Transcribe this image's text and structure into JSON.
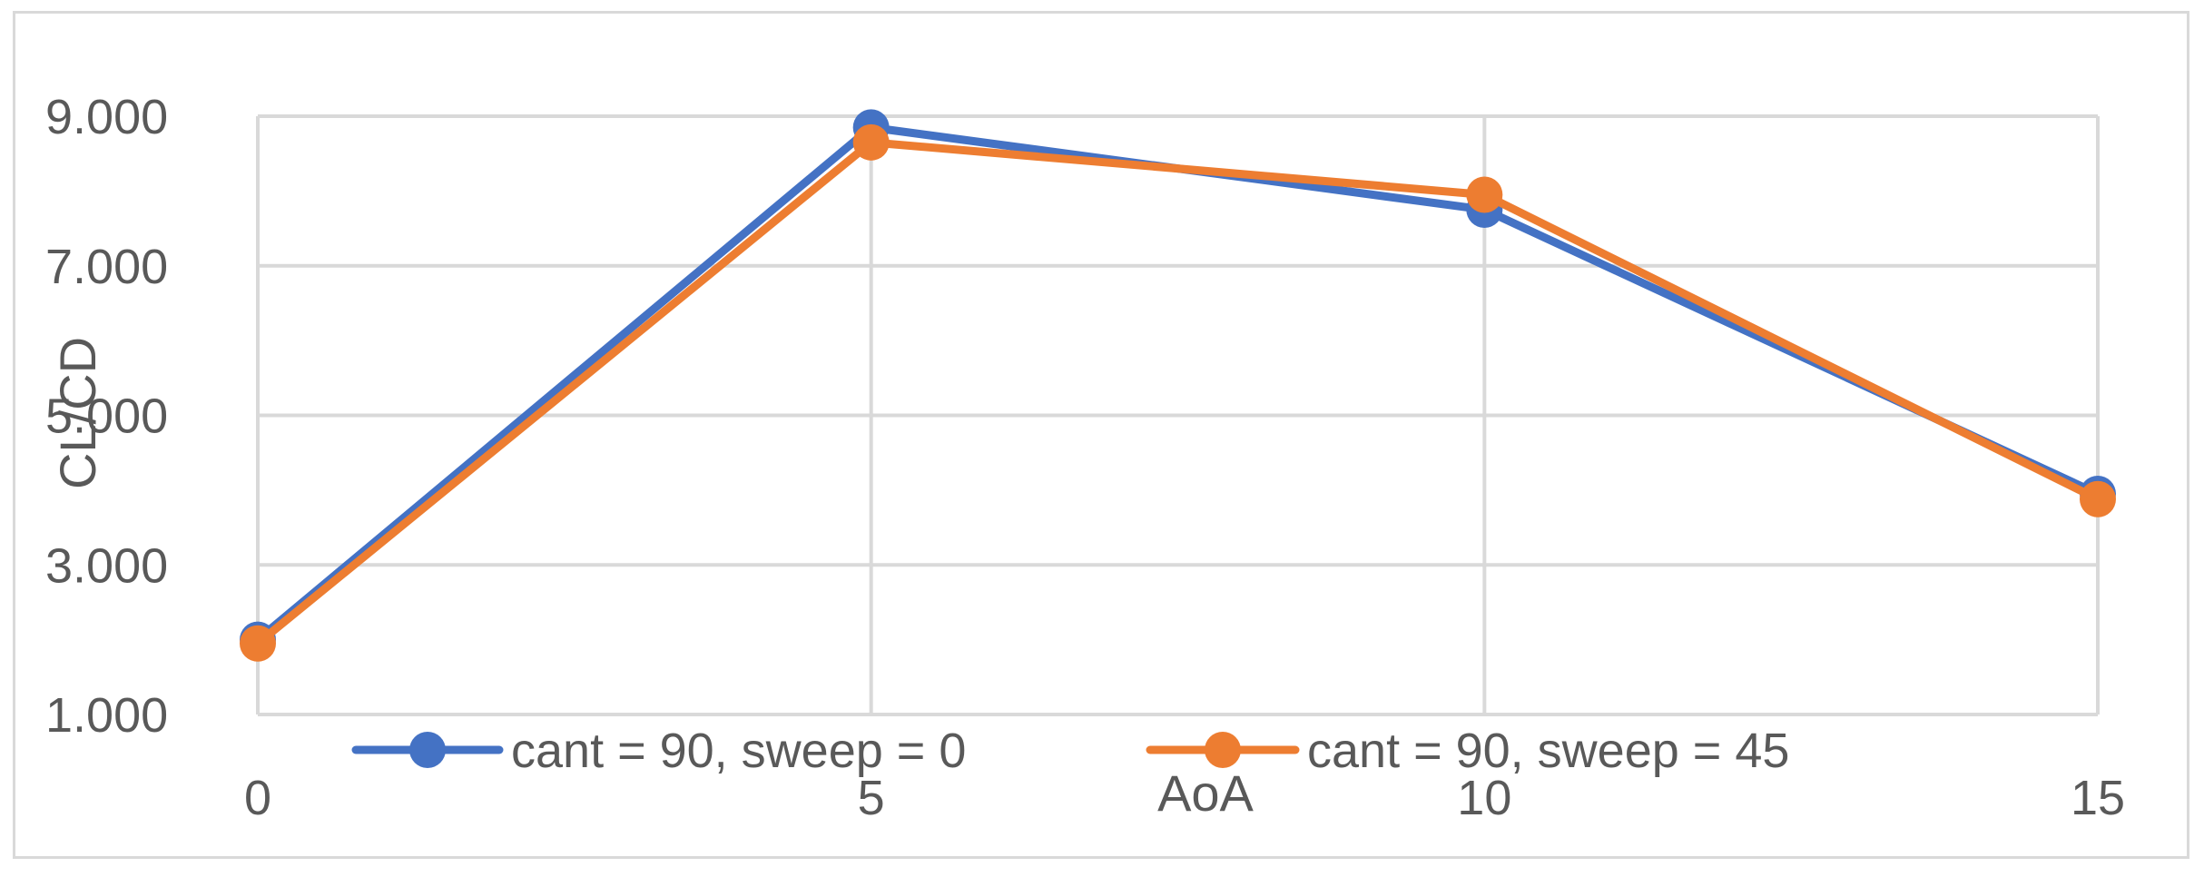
{
  "chart_data": {
    "type": "line",
    "title": "",
    "xlabel": "AoA",
    "ylabel": "CL/CD",
    "categories": [
      "0",
      "5",
      "10",
      "15"
    ],
    "x": [
      0,
      5,
      10,
      15
    ],
    "y_ticks": [
      "1.000",
      "3.000",
      "5.000",
      "7.000",
      "9.000"
    ],
    "ylim": [
      1,
      9
    ],
    "grid": true,
    "legend_position": "bottom",
    "series": [
      {
        "name": "cant = 90, sweep = 0",
        "color": "#4472C4",
        "values": [
          2.0,
          8.85,
          7.75,
          3.95
        ]
      },
      {
        "name": "cant = 90, sweep = 45",
        "color": "#ED7D31",
        "values": [
          1.95,
          8.65,
          7.95,
          3.88
        ]
      }
    ]
  }
}
